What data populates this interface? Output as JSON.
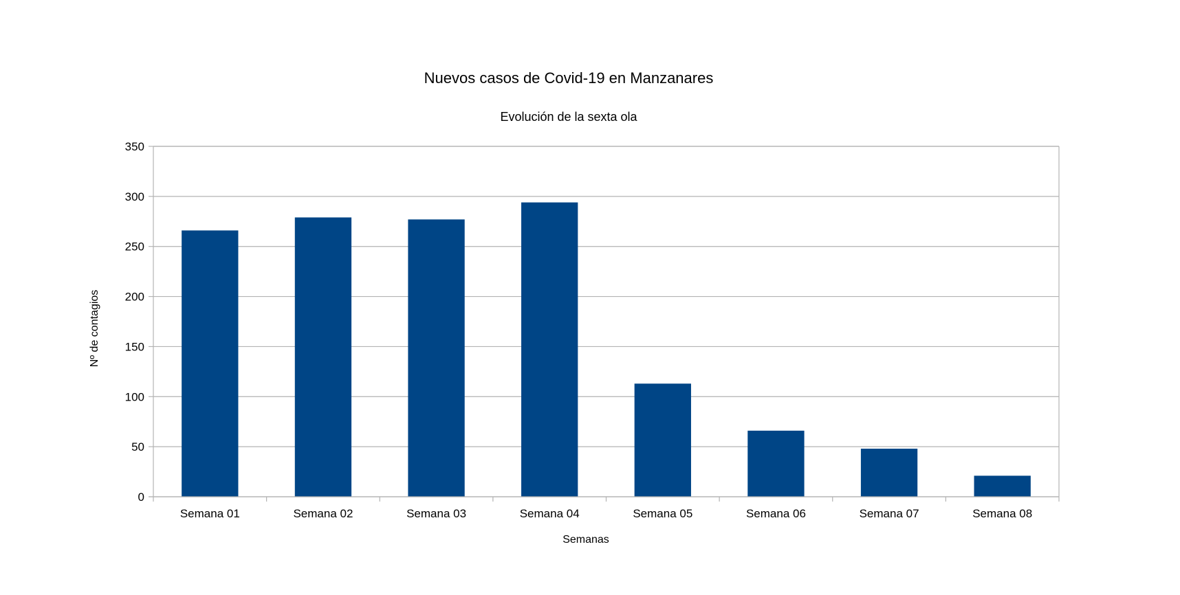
{
  "chart_data": {
    "type": "bar",
    "title": "Nuevos casos de Covid-19 en Manzanares",
    "subtitle": "Evolución de la sexta ola",
    "xlabel": "Semanas",
    "ylabel": "Nº de contagios",
    "categories": [
      "Semana 01",
      "Semana 02",
      "Semana 03",
      "Semana 04",
      "Semana 05",
      "Semana 06",
      "Semana 07",
      "Semana 08"
    ],
    "values": [
      266,
      279,
      277,
      294,
      113,
      66,
      48,
      21
    ],
    "ylim": [
      0,
      350
    ],
    "yticks": [
      0,
      50,
      100,
      150,
      200,
      250,
      300,
      350
    ],
    "grid": true,
    "legend": "none",
    "colors": {
      "bar": "#004586",
      "grid": "#b3b3b3",
      "axis": "#b3b3b3"
    }
  }
}
